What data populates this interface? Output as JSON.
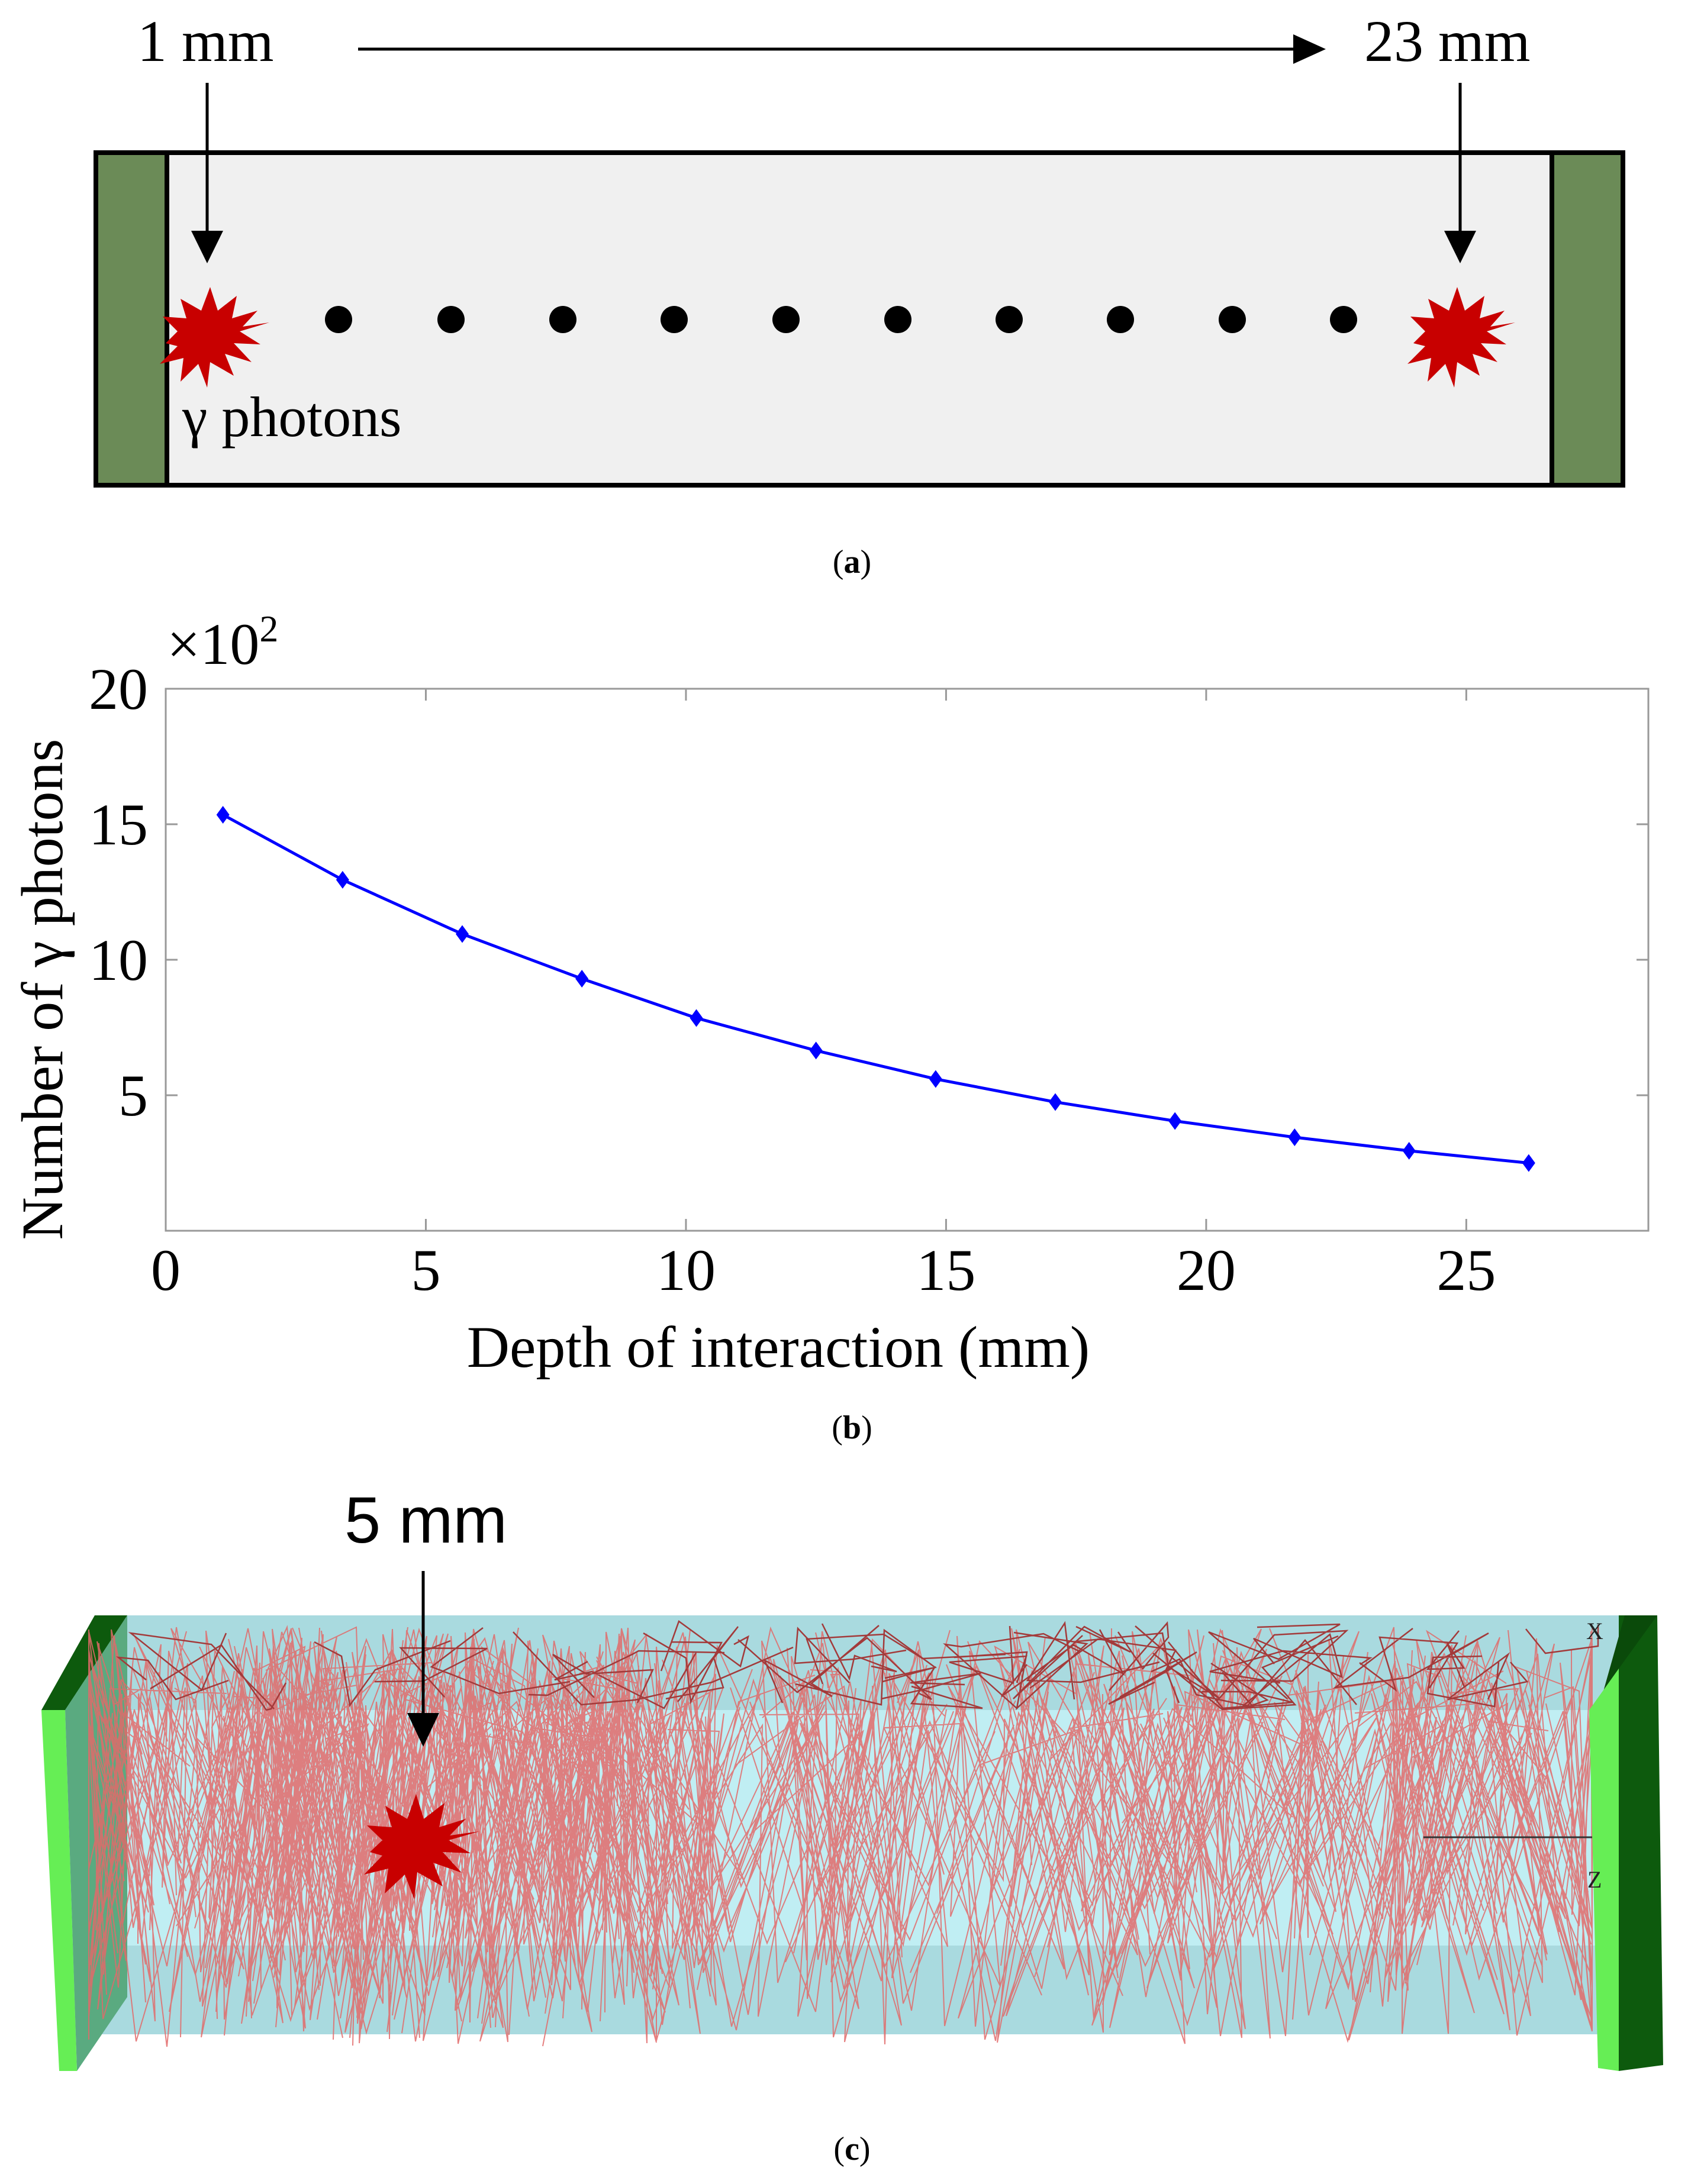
{
  "panel_a": {
    "label_start": "1 mm",
    "label_end": "23 mm",
    "source_label": "γ photons",
    "caption_letter": "a",
    "crystal_color": "#f0f0f0",
    "end_cap_color": "#6b8b57",
    "source_color": "#c80000"
  },
  "chart_data": {
    "type": "line",
    "title": "",
    "xlabel": "Depth of interaction (mm)",
    "ylabel": "Number of γ photons",
    "y_multiplier_label": "×10",
    "y_multiplier_exp": "2",
    "xlim": [
      0,
      28.5
    ],
    "ylim": [
      0,
      20
    ],
    "x_ticks": [
      0,
      5,
      10,
      15,
      20,
      25
    ],
    "y_ticks": [
      5,
      10,
      15,
      20
    ],
    "grid": false,
    "legend": "none",
    "series": [
      {
        "name": "Number of γ photons",
        "color": "#0000ff",
        "marker": "diamond",
        "x": [
          1.1,
          3.4,
          5.7,
          8.0,
          10.2,
          12.5,
          14.8,
          17.1,
          19.4,
          21.7,
          23.9,
          26.2
        ],
        "y": [
          15.35,
          12.95,
          10.95,
          9.3,
          7.85,
          6.65,
          5.6,
          4.75,
          4.05,
          3.45,
          2.95,
          2.5
        ]
      }
    ]
  },
  "panel_b": {
    "caption_letter": "b"
  },
  "panel_c": {
    "source_label": "5 mm",
    "axis_x_label": "X",
    "axis_z_label": "Z",
    "caption_letter": "c",
    "crystal_color": "#a9dadf",
    "end_cap_color": "#66ee55",
    "end_cap_dark_color": "#0d5a0d",
    "track_color": "#e26a6a",
    "source_color": "#c80000"
  }
}
